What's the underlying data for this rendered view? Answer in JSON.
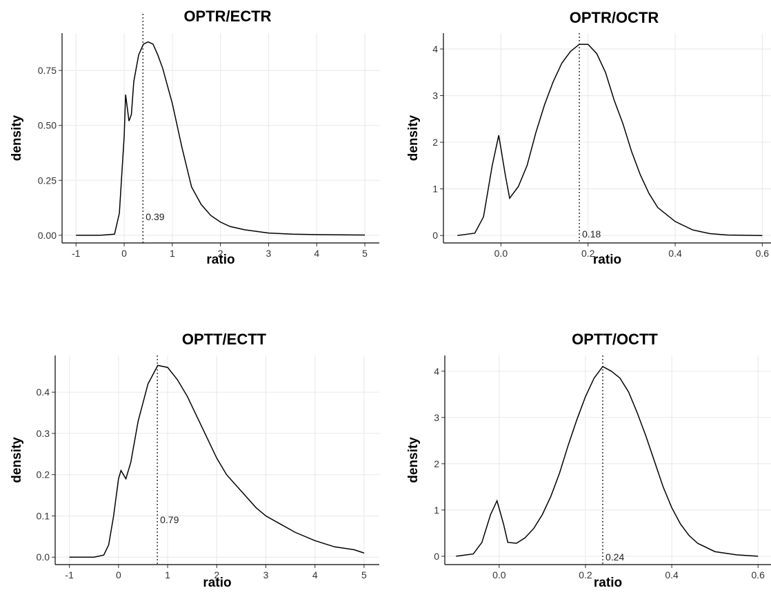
{
  "chart_data": [
    {
      "type": "line",
      "title": "OPTR/ECTR",
      "x_label": "ratio",
      "y_label": "density",
      "color": "#000000",
      "grid": true,
      "x": [
        -1,
        -0.5,
        -0.2,
        -0.1,
        0,
        0.03,
        0.1,
        0.15,
        0.2,
        0.3,
        0.4,
        0.5,
        0.6,
        0.7,
        0.8,
        1.0,
        1.2,
        1.4,
        1.6,
        1.8,
        2.0,
        2.2,
        2.5,
        3,
        3.5,
        4,
        5
      ],
      "series": [
        {
          "name": "density",
          "color": "#000000",
          "values": [
            0,
            0,
            0.005,
            0.1,
            0.45,
            0.64,
            0.52,
            0.55,
            0.7,
            0.82,
            0.87,
            0.88,
            0.87,
            0.82,
            0.76,
            0.6,
            0.4,
            0.22,
            0.14,
            0.09,
            0.06,
            0.04,
            0.025,
            0.01,
            0.005,
            0.003,
            0.001
          ]
        }
      ],
      "xlim": [
        -1.29,
        5.3
      ],
      "ylim": [
        -0.035,
        0.92
      ],
      "xticks": [
        -1,
        0,
        1,
        2,
        3,
        4,
        5
      ],
      "yticks": [
        {
          "value": 0,
          "label": "0.00"
        },
        0.25,
        {
          "value": 0.5,
          "label": "0.50"
        },
        0.75
      ],
      "median": {
        "value": 0.39,
        "label": "0.39"
      }
    },
    {
      "type": "line",
      "title": "OPTR/OCTR",
      "x_label": "ratio",
      "y_label": "density",
      "color": "#000000",
      "grid": true,
      "x": [
        -0.1,
        -0.06,
        -0.04,
        -0.02,
        -0.005,
        0.01,
        0.02,
        0.04,
        0.06,
        0.08,
        0.1,
        0.12,
        0.14,
        0.16,
        0.18,
        0.2,
        0.22,
        0.24,
        0.26,
        0.28,
        0.3,
        0.32,
        0.34,
        0.36,
        0.38,
        0.4,
        0.44,
        0.48,
        0.52,
        0.6
      ],
      "series": [
        {
          "name": "density",
          "color": "#000000",
          "values": [
            0,
            0.05,
            0.4,
            1.5,
            2.15,
            1.3,
            0.8,
            1.05,
            1.5,
            2.2,
            2.8,
            3.3,
            3.7,
            3.95,
            4.1,
            4.1,
            3.9,
            3.5,
            2.9,
            2.4,
            1.8,
            1.3,
            0.9,
            0.6,
            0.45,
            0.3,
            0.12,
            0.04,
            0.01,
            0
          ]
        }
      ],
      "xlim": [
        -0.132,
        0.62
      ],
      "ylim": [
        -0.16,
        4.34
      ],
      "xticks": [
        {
          "value": 0,
          "label": "0.0"
        },
        0.2,
        0.4,
        0.6
      ],
      "yticks": [
        0,
        1,
        2,
        3,
        4
      ],
      "median": {
        "value": 0.18,
        "label": "0.18"
      }
    },
    {
      "type": "line",
      "title": "OPTT/ECTT",
      "x_label": "ratio",
      "y_label": "density",
      "color": "#000000",
      "grid": true,
      "x": [
        -1,
        -0.5,
        -0.3,
        -0.2,
        -0.1,
        0,
        0.05,
        0.15,
        0.25,
        0.4,
        0.6,
        0.8,
        1.0,
        1.2,
        1.4,
        1.6,
        1.8,
        2.0,
        2.2,
        2.5,
        2.8,
        3.0,
        3.3,
        3.6,
        4.0,
        4.4,
        4.8,
        5.0
      ],
      "series": [
        {
          "name": "density",
          "color": "#000000",
          "values": [
            0,
            0,
            0.005,
            0.03,
            0.1,
            0.19,
            0.21,
            0.19,
            0.23,
            0.33,
            0.42,
            0.465,
            0.46,
            0.43,
            0.39,
            0.34,
            0.29,
            0.24,
            0.2,
            0.16,
            0.12,
            0.1,
            0.08,
            0.06,
            0.04,
            0.025,
            0.018,
            0.01
          ]
        }
      ],
      "xlim": [
        -1.29,
        5.31
      ],
      "ylim": [
        -0.018,
        0.489
      ],
      "xticks": [
        -1,
        0,
        1,
        2,
        3,
        4,
        5
      ],
      "yticks": [
        {
          "value": 0,
          "label": "0.0"
        },
        0.1,
        0.2,
        0.3,
        0.4
      ],
      "median": {
        "value": 0.79,
        "label": "0.79"
      }
    },
    {
      "type": "line",
      "title": "OPTT/OCTT",
      "x_label": "ratio",
      "y_label": "density",
      "color": "#000000",
      "grid": true,
      "x": [
        -0.1,
        -0.06,
        -0.04,
        -0.02,
        -0.005,
        0.01,
        0.02,
        0.04,
        0.06,
        0.08,
        0.1,
        0.12,
        0.14,
        0.16,
        0.18,
        0.2,
        0.22,
        0.24,
        0.26,
        0.28,
        0.3,
        0.32,
        0.34,
        0.36,
        0.38,
        0.4,
        0.42,
        0.44,
        0.46,
        0.5,
        0.55,
        0.6
      ],
      "series": [
        {
          "name": "density",
          "color": "#000000",
          "values": [
            0,
            0.05,
            0.3,
            0.9,
            1.2,
            0.7,
            0.3,
            0.28,
            0.4,
            0.6,
            0.9,
            1.3,
            1.8,
            2.4,
            2.95,
            3.45,
            3.85,
            4.1,
            4.0,
            3.85,
            3.55,
            3.1,
            2.6,
            2.05,
            1.5,
            1.05,
            0.7,
            0.45,
            0.28,
            0.1,
            0.03,
            0
          ]
        }
      ],
      "xlim": [
        -0.126,
        0.63
      ],
      "ylim": [
        -0.18,
        4.34
      ],
      "xticks": [
        {
          "value": 0,
          "label": "0.0"
        },
        0.2,
        0.4,
        0.6
      ],
      "yticks": [
        0,
        1,
        2,
        3,
        4
      ],
      "median": {
        "value": 0.24,
        "label": "0.24"
      }
    }
  ]
}
